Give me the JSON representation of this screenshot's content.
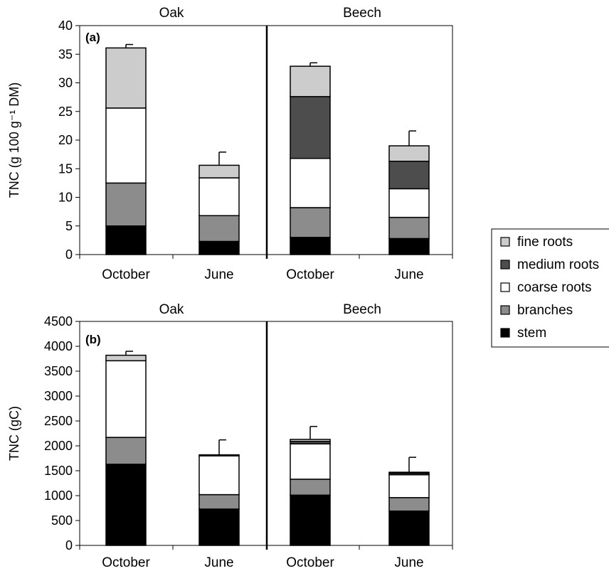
{
  "legend": [
    {
      "name": "fine roots",
      "color": "#cccccc"
    },
    {
      "name": "medium roots",
      "color": "#4d4d4d"
    },
    {
      "name": "coarse roots",
      "color": "#ffffff"
    },
    {
      "name": "branches",
      "color": "#8c8c8c"
    },
    {
      "name": "stem",
      "color": "#000000"
    }
  ],
  "chart_data": [
    {
      "type": "bar",
      "stacked": true,
      "panel_label": "(a)",
      "ylabel": "TNC (g 100 g⁻¹ DM)",
      "ylim": [
        0,
        40
      ],
      "yticks": [
        0,
        5,
        10,
        15,
        20,
        25,
        30,
        35,
        40
      ],
      "groups": [
        "Oak",
        "Beech"
      ],
      "categories": [
        "October",
        "June",
        "October",
        "June"
      ],
      "series": [
        {
          "name": "stem",
          "values": [
            5.0,
            2.3,
            3.0,
            2.8
          ]
        },
        {
          "name": "branches",
          "values": [
            7.5,
            4.5,
            5.2,
            3.7
          ]
        },
        {
          "name": "coarse roots",
          "values": [
            13.1,
            6.6,
            8.6,
            5.0
          ]
        },
        {
          "name": "medium roots",
          "values": [
            0,
            0,
            10.8,
            4.8
          ]
        },
        {
          "name": "fine roots",
          "values": [
            10.5,
            2.2,
            5.3,
            2.7
          ]
        }
      ],
      "error_bar_top": [
        36.7,
        17.9,
        33.5,
        21.6
      ]
    },
    {
      "type": "bar",
      "stacked": true,
      "panel_label": "(b)",
      "ylabel": "TNC (gC)",
      "ylim": [
        0,
        4500
      ],
      "yticks": [
        0,
        500,
        1000,
        1500,
        2000,
        2500,
        3000,
        3500,
        4000,
        4500
      ],
      "groups": [
        "Oak",
        "Beech"
      ],
      "categories": [
        "October",
        "June",
        "October",
        "June"
      ],
      "series": [
        {
          "name": "stem",
          "values": [
            1630,
            730,
            1010,
            690
          ]
        },
        {
          "name": "branches",
          "values": [
            540,
            290,
            320,
            270
          ]
        },
        {
          "name": "coarse roots",
          "values": [
            1540,
            780,
            710,
            460
          ]
        },
        {
          "name": "medium roots",
          "values": [
            0,
            0,
            50,
            30
          ]
        },
        {
          "name": "fine roots",
          "values": [
            110,
            20,
            40,
            20
          ]
        }
      ],
      "error_bar_top": [
        3900,
        2120,
        2390,
        1770
      ]
    }
  ]
}
